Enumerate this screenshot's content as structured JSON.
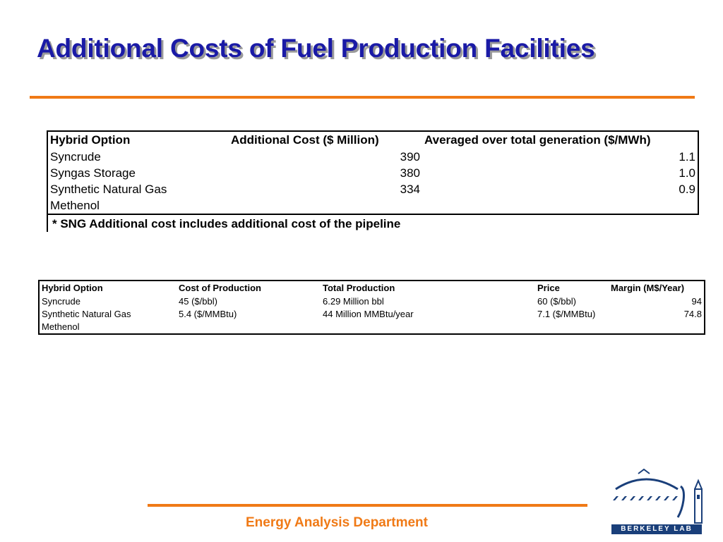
{
  "title": "Additional Costs of Fuel Production Facilities",
  "table1": {
    "headers": [
      "Hybrid Option",
      "Additional Cost ($ Million)",
      "Averaged over total generation ($/MWh)"
    ],
    "rows": [
      [
        "Syncrude",
        "390",
        "1.1"
      ],
      [
        "Syngas Storage",
        "380",
        "1.0"
      ],
      [
        "Synthetic Natural Gas",
        "334",
        "0.9"
      ],
      [
        "Methenol",
        "",
        ""
      ]
    ],
    "note": "* SNG Additional cost includes additional cost of the pipeline"
  },
  "table2": {
    "headers": [
      "Hybrid Option",
      "Cost of Production",
      "Total Production",
      "Price",
      "Margin (M$/Year)"
    ],
    "rows": [
      [
        "Syncrude",
        "45 ($/bbl)",
        "6.29 Million bbl",
        "60 ($/bbl)",
        "94"
      ],
      [
        "Synthetic Natural Gas",
        "5.4 ($/MMBtu)",
        "44 Million MMBtu/year",
        "7.1 ($/MMBtu)",
        "74.8"
      ],
      [
        "Methenol",
        "",
        "",
        "",
        ""
      ]
    ]
  },
  "footer": "Energy Analysis Department",
  "logo": {
    "text": "BERKELEY LAB",
    "icon": "berkeley-lab-logo"
  },
  "colors": {
    "title": "#1a1aa6",
    "accent": "#f07a16",
    "logo": "#1a3f7a"
  }
}
